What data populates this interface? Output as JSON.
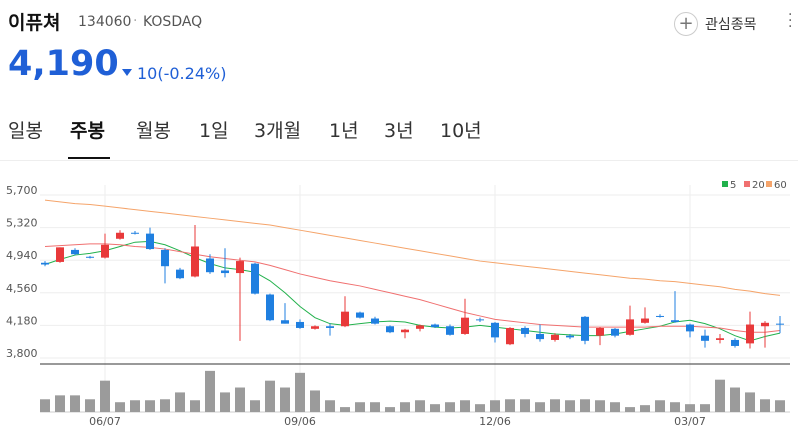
{
  "header": {
    "name": "이퓨쳐",
    "code": "134060",
    "market": "KOSDAQ",
    "watch_button": "관심종목",
    "price": "4,190",
    "change": "10(-0.24%)"
  },
  "tabs": {
    "items": [
      "일봉",
      "주봉",
      "월봉",
      "1일",
      "3개월",
      "1년",
      "3년",
      "10년"
    ],
    "selected": 1
  },
  "chart_data": {
    "type": "candlestick",
    "categories": [
      null,
      null,
      null,
      null,
      "06/07",
      null,
      null,
      null,
      null,
      null,
      null,
      null,
      null,
      null,
      null,
      null,
      null,
      "09/06",
      null,
      null,
      null,
      null,
      null,
      null,
      null,
      null,
      null,
      null,
      null,
      null,
      "12/06",
      null,
      null,
      null,
      null,
      null,
      null,
      null,
      null,
      null,
      null,
      null,
      null,
      "03/07",
      null,
      null,
      null,
      null,
      null,
      null
    ],
    "open": [
      4910,
      4920,
      5060,
      4980,
      4970,
      5190,
      5260,
      5250,
      5060,
      4830,
      4750,
      4960,
      4820,
      4790,
      4900,
      4540,
      4240,
      4220,
      4140,
      4170,
      4170,
      4330,
      4260,
      4170,
      4100,
      4140,
      4190,
      4170,
      4080,
      4250,
      4210,
      3960,
      4150,
      4080,
      4010,
      4060,
      4280,
      4060,
      4140,
      4070,
      4210,
      4290,
      4240,
      4190,
      4060,
      4010,
      4010,
      3970,
      4170,
      4200
    ],
    "high": [
      4930,
      5090,
      5080,
      4990,
      5250,
      5290,
      5280,
      5320,
      5080,
      4850,
      5350,
      5010,
      5080,
      4970,
      4910,
      4550,
      4440,
      4250,
      4180,
      4200,
      4520,
      4340,
      4280,
      4180,
      4140,
      4190,
      4200,
      4190,
      4490,
      4270,
      4220,
      4160,
      4170,
      4190,
      4090,
      4080,
      4290,
      4160,
      4150,
      4410,
      4390,
      4310,
      4580,
      4200,
      4130,
      4080,
      4030,
      4340,
      4230,
      4290
    ],
    "low": [
      4870,
      4910,
      5000,
      4960,
      4960,
      5180,
      5240,
      5060,
      4670,
      4720,
      4740,
      4780,
      4740,
      4000,
      4540,
      4230,
      4200,
      4140,
      4130,
      4060,
      4160,
      4260,
      4190,
      4090,
      4030,
      4110,
      4150,
      4060,
      4070,
      4220,
      3980,
      3950,
      4040,
      3990,
      3990,
      4020,
      3960,
      3950,
      4040,
      4060,
      4200,
      4270,
      4210,
      4040,
      3920,
      3970,
      3920,
      3910,
      3920,
      4090
    ],
    "close": [
      4890,
      5090,
      5010,
      4970,
      5120,
      5260,
      5250,
      5070,
      4870,
      4730,
      5100,
      4800,
      4790,
      4930,
      4550,
      4240,
      4200,
      4150,
      4170,
      4150,
      4340,
      4270,
      4200,
      4100,
      4130,
      4180,
      4160,
      4070,
      4270,
      4240,
      4040,
      4150,
      4080,
      4020,
      4070,
      4040,
      4000,
      4150,
      4060,
      4250,
      4260,
      4280,
      4220,
      4110,
      4000,
      4030,
      3940,
      4190,
      4210,
      4190
    ],
    "ma": [
      {
        "name": "5",
        "color": "#22b14c",
        "values": [
          4890,
          4950,
          5000,
          5020,
          5050,
          5100,
          5150,
          5160,
          5120,
          5050,
          4970,
          4900,
          4850,
          4830,
          4800,
          4700,
          4560,
          4400,
          4270,
          4200,
          4180,
          4200,
          4220,
          4230,
          4220,
          4180,
          4160,
          4150,
          4160,
          4180,
          4160,
          4140,
          4120,
          4100,
          4080,
          4070,
          4060,
          4060,
          4080,
          4110,
          4140,
          4170,
          4220,
          4240,
          4200,
          4140,
          4060,
          4000,
          4050,
          4090
        ]
      },
      {
        "name": "20",
        "color": "#f07070",
        "values": [
          5100,
          5110,
          5120,
          5130,
          5130,
          5120,
          5100,
          5090,
          5070,
          5040,
          5010,
          4980,
          4960,
          4940,
          4920,
          4880,
          4830,
          4780,
          4740,
          4700,
          4670,
          4640,
          4600,
          4560,
          4520,
          4480,
          4430,
          4380,
          4330,
          4290,
          4250,
          4230,
          4210,
          4190,
          4180,
          4170,
          4160,
          4160,
          4160,
          4160,
          4160,
          4170,
          4170,
          4170,
          4160,
          4150,
          4120,
          4100,
          4100,
          4120
        ]
      },
      {
        "name": "60",
        "color": "#f5a46a",
        "values": [
          5640,
          5620,
          5600,
          5590,
          5570,
          5550,
          5530,
          5510,
          5490,
          5470,
          5450,
          5430,
          5410,
          5390,
          5370,
          5350,
          5320,
          5290,
          5260,
          5230,
          5200,
          5170,
          5140,
          5110,
          5080,
          5050,
          5020,
          4990,
          4960,
          4930,
          4910,
          4890,
          4870,
          4850,
          4830,
          4810,
          4790,
          4770,
          4750,
          4730,
          4720,
          4700,
          4690,
          4670,
          4650,
          4630,
          4600,
          4580,
          4550,
          4530
        ]
      }
    ],
    "volume": [
      13,
      17,
      17,
      13,
      32,
      10,
      12,
      12,
      13,
      20,
      12,
      42,
      20,
      25,
      12,
      32,
      25,
      40,
      22,
      12,
      5,
      10,
      10,
      5,
      10,
      12,
      8,
      10,
      12,
      8,
      12,
      13,
      13,
      10,
      13,
      12,
      13,
      12,
      10,
      5,
      7,
      12,
      10,
      8,
      8,
      33,
      25,
      20,
      13,
      12
    ],
    "volume_ylim": [
      0,
      48
    ],
    "ylim": [
      3753,
      5817
    ],
    "yticks": [
      {
        "value": 5700,
        "label": "5,700"
      },
      {
        "value": 5320,
        "label": "5,320"
      },
      {
        "value": 4940,
        "label": "4,940"
      },
      {
        "value": 4560,
        "label": "4,560"
      },
      {
        "value": 4180,
        "label": "4,180"
      },
      {
        "value": 3800,
        "label": "3,800"
      }
    ],
    "up_color": "#e8393a",
    "down_color": "#1f7fe0",
    "volume_color": "#9b9b9b",
    "grid": true
  }
}
